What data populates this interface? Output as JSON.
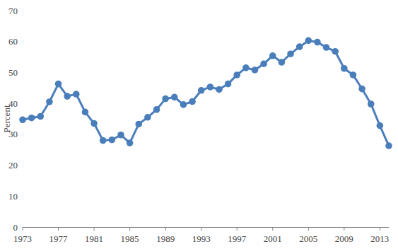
{
  "chart_data": {
    "type": "line",
    "y_label": "Percent",
    "x": [
      1973,
      1974,
      1975,
      1976,
      1977,
      1978,
      1979,
      1980,
      1981,
      1982,
      1983,
      1984,
      1985,
      1986,
      1987,
      1988,
      1989,
      1990,
      1991,
      1992,
      1993,
      1994,
      1995,
      1996,
      1997,
      1998,
      1999,
      2000,
      2001,
      2002,
      2003,
      2004,
      2005,
      2006,
      2007,
      2008,
      2009,
      2010,
      2011,
      2012,
      2013,
      2014
    ],
    "values": [
      34.7,
      35.3,
      35.8,
      40.5,
      46.3,
      42.3,
      43.0,
      37.2,
      33.5,
      28.0,
      28.2,
      29.8,
      27.2,
      33.3,
      35.5,
      38.0,
      41.5,
      42.0,
      39.6,
      40.6,
      44.2,
      45.3,
      44.5,
      46.3,
      49.2,
      51.5,
      50.8,
      52.8,
      55.4,
      53.3,
      56.0,
      58.3,
      60.3,
      59.8,
      58.1,
      56.8,
      51.3,
      49.2,
      44.7,
      39.8,
      32.8,
      26.3
    ],
    "color": "#4a7ebb",
    "marker": "circle",
    "line_style": "solid",
    "grid": false,
    "xlim": [
      1973,
      2014
    ],
    "xticks": [
      1973,
      1977,
      1981,
      1985,
      1989,
      1993,
      1997,
      2001,
      2005,
      2009,
      2013
    ],
    "ylim": [
      0,
      70
    ],
    "yticks": [
      0,
      10,
      20,
      30,
      40,
      50,
      60,
      70
    ]
  }
}
